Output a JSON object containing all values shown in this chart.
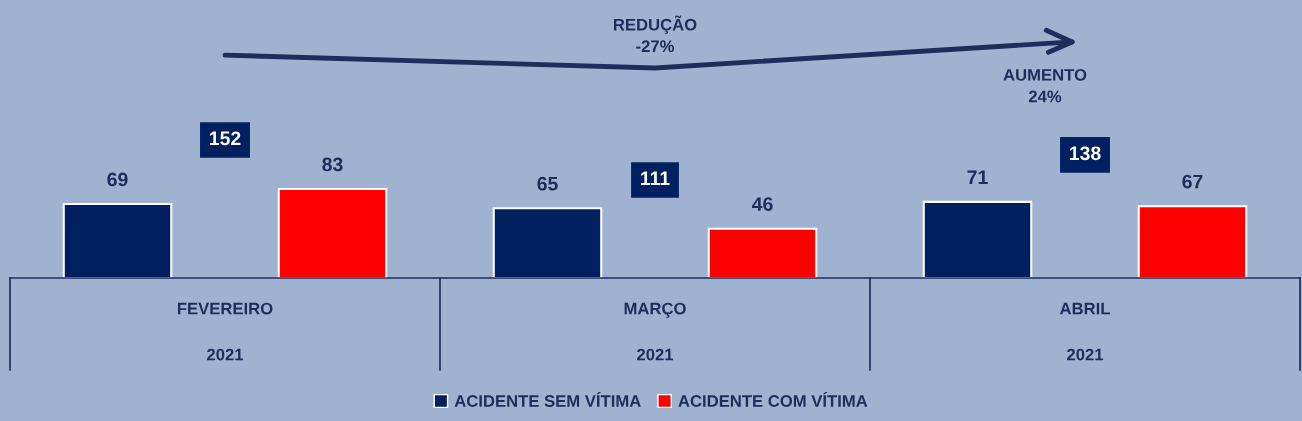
{
  "chart_data": {
    "type": "bar",
    "categories": [
      "FEVEREIRO\n2021",
      "MARÇO\n2021",
      "ABRIL\n2021"
    ],
    "series": [
      {
        "name": "ACIDENTE SEM VÍTIMA",
        "color": "#002060",
        "values": [
          69,
          65,
          71
        ]
      },
      {
        "name": "ACIDENTE COM VÍTIMA",
        "color": "#ff0000",
        "values": [
          83,
          46,
          67
        ]
      }
    ],
    "data_labels": true,
    "annotations": [
      "REDUÇÃO\n-27%",
      "AUMENTO\n24%",
      "152",
      "111",
      "138"
    ],
    "legend": "bottom"
  }
}
